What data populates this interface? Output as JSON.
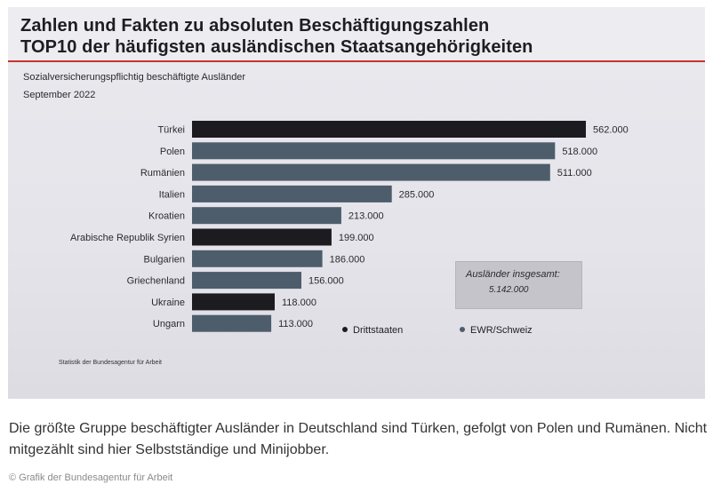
{
  "slide": {
    "title_line1": "Zahlen und Fakten zu absoluten Beschäftigungszahlen",
    "title_line2": "TOP10 der häufigsten ausländischen Staatsangehörigkeiten",
    "subtitle_line1": "Sozialversicherungspflichtig beschäftigte Ausländer",
    "subtitle_line2": "September 2022",
    "total_label": "Ausländer insgesamt:",
    "total_value": "5.142.000",
    "source_note": "Statistik der Bundesagentur für Arbeit"
  },
  "legend": [
    {
      "label": "Drittstaaten",
      "color": "#1c1c20"
    },
    {
      "label": "EWR/Schweiz",
      "color": "#4e5d6c"
    }
  ],
  "chart_data": {
    "type": "bar",
    "orientation": "horizontal",
    "title": "TOP10 der häufigsten ausländischen Staatsangehörigkeiten",
    "categories": [
      "Türkei",
      "Polen",
      "Rumänien",
      "Italien",
      "Kroatien",
      "Arabische Republik Syrien",
      "Bulgarien",
      "Griechenland",
      "Ukraine",
      "Ungarn"
    ],
    "values": [
      562000,
      518000,
      511000,
      285000,
      213000,
      199000,
      186000,
      156000,
      118000,
      113000
    ],
    "value_labels": [
      "562.000",
      "518.000",
      "511.000",
      "285.000",
      "213.000",
      "199.000",
      "186.000",
      "156.000",
      "118.000",
      "113.000"
    ],
    "groups": [
      "Drittstaaten",
      "EWR/Schweiz",
      "EWR/Schweiz",
      "EWR/Schweiz",
      "EWR/Schweiz",
      "Drittstaaten",
      "EWR/Schweiz",
      "EWR/Schweiz",
      "Drittstaaten",
      "EWR/Schweiz"
    ],
    "colors": {
      "Drittstaaten": "#1c1c20",
      "EWR/Schweiz": "#4e5d6c"
    },
    "xlim": [
      0,
      562000
    ],
    "grid": false,
    "legend_position": "bottom-right"
  },
  "caption": "Die größte Gruppe beschäftigter Ausländer in Deutschland sind Türken, gefolgt von Polen und Rumänen. Nicht mitgezählt sind hier Selbstständige und Minijobber.",
  "credit": "© Grafik der Bundesagentur für Arbeit"
}
